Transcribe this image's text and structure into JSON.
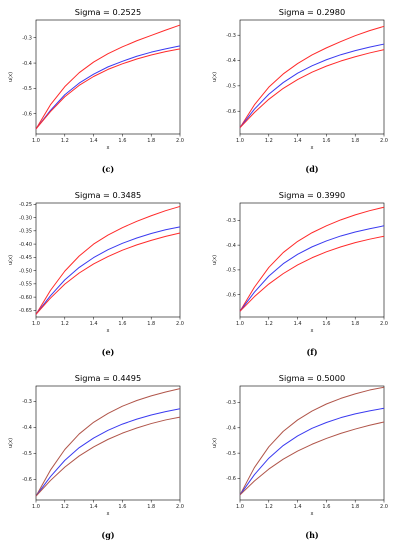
{
  "colors": {
    "red": "#ff2a2a",
    "blue": "#3a3af0",
    "brown": "#b0554a"
  },
  "chart_data": [
    {
      "type": "line",
      "caption": "(c)",
      "title": "Sigma = 0.2525",
      "xlabel": "x",
      "ylabel": "u(x)",
      "xlim": [
        1.0,
        2.0
      ],
      "ylim": [
        -0.68,
        -0.23
      ],
      "xticks": [
        "1.0",
        "1.2",
        "1.4",
        "1.6",
        "1.8",
        "2.0"
      ],
      "yticks": [
        {
          "v": -0.3,
          "label": "-0.3"
        },
        {
          "v": -0.4,
          "label": "-0.4"
        },
        {
          "v": -0.5,
          "label": "-0.5"
        },
        {
          "v": -0.6,
          "label": "-0.6"
        }
      ],
      "series": [
        {
          "color": "red",
          "values": [
            [
              1.0,
              -0.66
            ],
            [
              1.1,
              -0.565
            ],
            [
              1.2,
              -0.493
            ],
            [
              1.3,
              -0.438
            ],
            [
              1.4,
              -0.396
            ],
            [
              1.5,
              -0.363
            ],
            [
              1.6,
              -0.336
            ],
            [
              1.7,
              -0.312
            ],
            [
              1.8,
              -0.291
            ],
            [
              1.9,
              -0.27
            ],
            [
              2.0,
              -0.25
            ]
          ]
        },
        {
          "color": "blue",
          "values": [
            [
              1.0,
              -0.66
            ],
            [
              1.1,
              -0.587
            ],
            [
              1.2,
              -0.525
            ],
            [
              1.3,
              -0.479
            ],
            [
              1.4,
              -0.444
            ],
            [
              1.5,
              -0.415
            ],
            [
              1.6,
              -0.393
            ],
            [
              1.7,
              -0.373
            ],
            [
              1.8,
              -0.357
            ],
            [
              1.9,
              -0.344
            ],
            [
              2.0,
              -0.332
            ]
          ]
        },
        {
          "color": "red",
          "values": [
            [
              1.0,
              -0.66
            ],
            [
              1.1,
              -0.592
            ],
            [
              1.2,
              -0.533
            ],
            [
              1.3,
              -0.488
            ],
            [
              1.4,
              -0.453
            ],
            [
              1.5,
              -0.425
            ],
            [
              1.6,
              -0.403
            ],
            [
              1.7,
              -0.384
            ],
            [
              1.8,
              -0.368
            ],
            [
              1.9,
              -0.355
            ],
            [
              2.0,
              -0.344
            ]
          ]
        }
      ]
    },
    {
      "type": "line",
      "caption": "(d)",
      "title": "Sigma = 0.2980",
      "xlabel": "x",
      "ylabel": "u(x)",
      "xlim": [
        1.0,
        2.0
      ],
      "ylim": [
        -0.69,
        -0.24
      ],
      "xticks": [
        "1.0",
        "1.2",
        "1.4",
        "1.6",
        "1.8",
        "2.0"
      ],
      "yticks": [
        {
          "v": -0.3,
          "label": "-0.3"
        },
        {
          "v": -0.4,
          "label": "-0.4"
        },
        {
          "v": -0.5,
          "label": "-0.5"
        },
        {
          "v": -0.6,
          "label": "-0.6"
        }
      ],
      "series": [
        {
          "color": "red",
          "values": [
            [
              1.0,
              -0.665
            ],
            [
              1.1,
              -0.575
            ],
            [
              1.2,
              -0.505
            ],
            [
              1.3,
              -0.453
            ],
            [
              1.4,
              -0.412
            ],
            [
              1.5,
              -0.378
            ],
            [
              1.6,
              -0.35
            ],
            [
              1.7,
              -0.325
            ],
            [
              1.8,
              -0.302
            ],
            [
              1.9,
              -0.282
            ],
            [
              2.0,
              -0.265
            ]
          ]
        },
        {
          "color": "blue",
          "values": [
            [
              1.0,
              -0.665
            ],
            [
              1.1,
              -0.592
            ],
            [
              1.2,
              -0.533
            ],
            [
              1.3,
              -0.487
            ],
            [
              1.4,
              -0.45
            ],
            [
              1.5,
              -0.421
            ],
            [
              1.6,
              -0.397
            ],
            [
              1.7,
              -0.377
            ],
            [
              1.8,
              -0.361
            ],
            [
              1.9,
              -0.347
            ],
            [
              2.0,
              -0.335
            ]
          ]
        },
        {
          "color": "red",
          "values": [
            [
              1.0,
              -0.665
            ],
            [
              1.1,
              -0.605
            ],
            [
              1.2,
              -0.553
            ],
            [
              1.3,
              -0.51
            ],
            [
              1.4,
              -0.475
            ],
            [
              1.5,
              -0.446
            ],
            [
              1.6,
              -0.422
            ],
            [
              1.7,
              -0.402
            ],
            [
              1.8,
              -0.385
            ],
            [
              1.9,
              -0.37
            ],
            [
              2.0,
              -0.357
            ]
          ]
        }
      ]
    },
    {
      "type": "line",
      "caption": "(e)",
      "title": "Sigma = 0.3485",
      "xlabel": "x",
      "ylabel": "u(x)",
      "xlim": [
        1.0,
        2.0
      ],
      "ylim": [
        -0.675,
        -0.245
      ],
      "xticks": [
        "1.0",
        "1.2",
        "1.4",
        "1.6",
        "1.8",
        "2.0"
      ],
      "yticks": [
        {
          "v": -0.25,
          "label": "-0.25"
        },
        {
          "v": -0.3,
          "label": "-0.30"
        },
        {
          "v": -0.35,
          "label": "-0.35"
        },
        {
          "v": -0.4,
          "label": "-0.40"
        },
        {
          "v": -0.45,
          "label": "-0.45"
        },
        {
          "v": -0.5,
          "label": "-0.50"
        },
        {
          "v": -0.55,
          "label": "-0.55"
        },
        {
          "v": -0.6,
          "label": "-0.60"
        },
        {
          "v": -0.65,
          "label": "-0.65"
        }
      ],
      "series": [
        {
          "color": "red",
          "values": [
            [
              1.0,
              -0.665
            ],
            [
              1.1,
              -0.575
            ],
            [
              1.2,
              -0.502
            ],
            [
              1.3,
              -0.445
            ],
            [
              1.4,
              -0.4
            ],
            [
              1.5,
              -0.366
            ],
            [
              1.6,
              -0.338
            ],
            [
              1.7,
              -0.314
            ],
            [
              1.8,
              -0.293
            ],
            [
              1.9,
              -0.274
            ],
            [
              2.0,
              -0.258
            ]
          ]
        },
        {
          "color": "blue",
          "values": [
            [
              1.0,
              -0.665
            ],
            [
              1.1,
              -0.595
            ],
            [
              1.2,
              -0.535
            ],
            [
              1.3,
              -0.488
            ],
            [
              1.4,
              -0.451
            ],
            [
              1.5,
              -0.421
            ],
            [
              1.6,
              -0.397
            ],
            [
              1.7,
              -0.377
            ],
            [
              1.8,
              -0.36
            ],
            [
              1.9,
              -0.346
            ],
            [
              2.0,
              -0.335
            ]
          ]
        },
        {
          "color": "red",
          "values": [
            [
              1.0,
              -0.665
            ],
            [
              1.1,
              -0.604
            ],
            [
              1.2,
              -0.551
            ],
            [
              1.3,
              -0.509
            ],
            [
              1.4,
              -0.475
            ],
            [
              1.5,
              -0.447
            ],
            [
              1.6,
              -0.423
            ],
            [
              1.7,
              -0.403
            ],
            [
              1.8,
              -0.386
            ],
            [
              1.9,
              -0.371
            ],
            [
              2.0,
              -0.358
            ]
          ]
        }
      ]
    },
    {
      "type": "line",
      "caption": "(f)",
      "title": "Sigma = 0.3990",
      "xlabel": "x",
      "ylabel": "u(x)",
      "xlim": [
        1.0,
        2.0
      ],
      "ylim": [
        -0.69,
        -0.23
      ],
      "xticks": [
        "1.0",
        "1.2",
        "1.4",
        "1.6",
        "1.8",
        "2.0"
      ],
      "yticks": [
        {
          "v": -0.3,
          "label": "-0.3"
        },
        {
          "v": -0.4,
          "label": "-0.4"
        },
        {
          "v": -0.5,
          "label": "-0.5"
        },
        {
          "v": -0.6,
          "label": "-0.6"
        }
      ],
      "series": [
        {
          "color": "red",
          "values": [
            [
              1.0,
              -0.667
            ],
            [
              1.1,
              -0.57
            ],
            [
              1.2,
              -0.49
            ],
            [
              1.3,
              -0.43
            ],
            [
              1.4,
              -0.385
            ],
            [
              1.5,
              -0.35
            ],
            [
              1.6,
              -0.322
            ],
            [
              1.7,
              -0.298
            ],
            [
              1.8,
              -0.278
            ],
            [
              1.9,
              -0.261
            ],
            [
              2.0,
              -0.247
            ]
          ]
        },
        {
          "color": "blue",
          "values": [
            [
              1.0,
              -0.667
            ],
            [
              1.1,
              -0.59
            ],
            [
              1.2,
              -0.525
            ],
            [
              1.3,
              -0.475
            ],
            [
              1.4,
              -0.437
            ],
            [
              1.5,
              -0.407
            ],
            [
              1.6,
              -0.383
            ],
            [
              1.7,
              -0.363
            ],
            [
              1.8,
              -0.347
            ],
            [
              1.9,
              -0.334
            ],
            [
              2.0,
              -0.322
            ]
          ]
        },
        {
          "color": "red",
          "values": [
            [
              1.0,
              -0.667
            ],
            [
              1.1,
              -0.608
            ],
            [
              1.2,
              -0.557
            ],
            [
              1.3,
              -0.515
            ],
            [
              1.4,
              -0.48
            ],
            [
              1.5,
              -0.451
            ],
            [
              1.6,
              -0.427
            ],
            [
              1.7,
              -0.407
            ],
            [
              1.8,
              -0.39
            ],
            [
              1.9,
              -0.376
            ],
            [
              2.0,
              -0.364
            ]
          ]
        }
      ]
    },
    {
      "type": "line",
      "caption": "(g)",
      "title": "Sigma = 0.4495",
      "xlabel": "x",
      "ylabel": "u(x)",
      "xlim": [
        1.0,
        2.0
      ],
      "ylim": [
        -0.68,
        -0.24
      ],
      "xticks": [
        "1.0",
        "1.2",
        "1.4",
        "1.6",
        "1.8",
        "2.0"
      ],
      "yticks": [
        {
          "v": -0.3,
          "label": "-0.3"
        },
        {
          "v": -0.4,
          "label": "-0.4"
        },
        {
          "v": -0.5,
          "label": "-0.5"
        },
        {
          "v": -0.6,
          "label": "-0.6"
        }
      ],
      "series": [
        {
          "color": "brown",
          "values": [
            [
              1.0,
              -0.665
            ],
            [
              1.1,
              -0.565
            ],
            [
              1.2,
              -0.485
            ],
            [
              1.3,
              -0.425
            ],
            [
              1.4,
              -0.38
            ],
            [
              1.5,
              -0.346
            ],
            [
              1.6,
              -0.318
            ],
            [
              1.7,
              -0.296
            ],
            [
              1.8,
              -0.278
            ],
            [
              1.9,
              -0.263
            ],
            [
              2.0,
              -0.25
            ]
          ]
        },
        {
          "color": "blue",
          "values": [
            [
              1.0,
              -0.665
            ],
            [
              1.1,
              -0.59
            ],
            [
              1.2,
              -0.527
            ],
            [
              1.3,
              -0.478
            ],
            [
              1.4,
              -0.441
            ],
            [
              1.5,
              -0.411
            ],
            [
              1.6,
              -0.387
            ],
            [
              1.7,
              -0.368
            ],
            [
              1.8,
              -0.352
            ],
            [
              1.9,
              -0.339
            ],
            [
              2.0,
              -0.328
            ]
          ]
        },
        {
          "color": "brown",
          "values": [
            [
              1.0,
              -0.665
            ],
            [
              1.1,
              -0.605
            ],
            [
              1.2,
              -0.553
            ],
            [
              1.3,
              -0.51
            ],
            [
              1.4,
              -0.475
            ],
            [
              1.5,
              -0.446
            ],
            [
              1.6,
              -0.422
            ],
            [
              1.7,
              -0.402
            ],
            [
              1.8,
              -0.385
            ],
            [
              1.9,
              -0.371
            ],
            [
              2.0,
              -0.36
            ]
          ]
        }
      ]
    },
    {
      "type": "line",
      "caption": "(h)",
      "title": "Sigma = 0.5000",
      "xlabel": "x",
      "ylabel": "u(x)",
      "xlim": [
        1.0,
        2.0
      ],
      "ylim": [
        -0.685,
        -0.235
      ],
      "xticks": [
        "1.0",
        "1.2",
        "1.4",
        "1.6",
        "1.8",
        "2.0"
      ],
      "yticks": [
        {
          "v": -0.3,
          "label": "-0.3"
        },
        {
          "v": -0.4,
          "label": "-0.4"
        },
        {
          "v": -0.5,
          "label": "-0.5"
        },
        {
          "v": -0.6,
          "label": "-0.6"
        }
      ],
      "series": [
        {
          "color": "brown",
          "values": [
            [
              1.0,
              -0.665
            ],
            [
              1.1,
              -0.557
            ],
            [
              1.2,
              -0.475
            ],
            [
              1.3,
              -0.414
            ],
            [
              1.4,
              -0.369
            ],
            [
              1.5,
              -0.334
            ],
            [
              1.6,
              -0.306
            ],
            [
              1.7,
              -0.284
            ],
            [
              1.8,
              -0.266
            ],
            [
              1.9,
              -0.251
            ],
            [
              2.0,
              -0.24
            ]
          ]
        },
        {
          "color": "blue",
          "values": [
            [
              1.0,
              -0.665
            ],
            [
              1.1,
              -0.585
            ],
            [
              1.2,
              -0.52
            ],
            [
              1.3,
              -0.47
            ],
            [
              1.4,
              -0.432
            ],
            [
              1.5,
              -0.402
            ],
            [
              1.6,
              -0.379
            ],
            [
              1.7,
              -0.36
            ],
            [
              1.8,
              -0.345
            ],
            [
              1.9,
              -0.333
            ],
            [
              2.0,
              -0.323
            ]
          ]
        },
        {
          "color": "brown",
          "values": [
            [
              1.0,
              -0.665
            ],
            [
              1.1,
              -0.61
            ],
            [
              1.2,
              -0.563
            ],
            [
              1.3,
              -0.524
            ],
            [
              1.4,
              -0.492
            ],
            [
              1.5,
              -0.465
            ],
            [
              1.6,
              -0.442
            ],
            [
              1.7,
              -0.422
            ],
            [
              1.8,
              -0.405
            ],
            [
              1.9,
              -0.39
            ],
            [
              2.0,
              -0.377
            ]
          ]
        }
      ]
    }
  ]
}
